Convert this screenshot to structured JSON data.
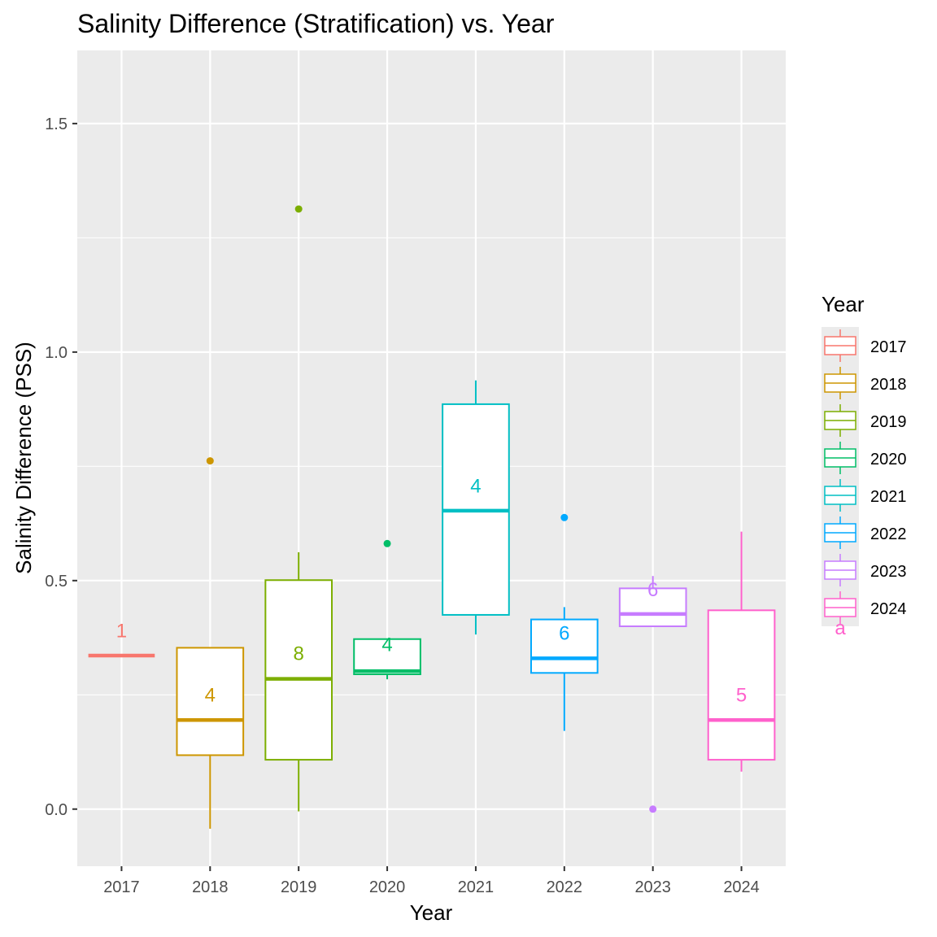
{
  "chart_data": {
    "type": "boxplot",
    "title": "Salinity Difference (Stratification) vs. Year",
    "xlabel": "Year",
    "ylabel": "Salinity Difference (PSS)",
    "ylim": [
      -0.125,
      1.66
    ],
    "yticks": [
      "0.0",
      "0.5",
      "1.0",
      "1.5"
    ],
    "ytick_values": [
      0.0,
      0.5,
      1.0,
      1.5
    ],
    "grid": true,
    "legend": {
      "title": "Year",
      "position": "right"
    },
    "categories": [
      "2017",
      "2018",
      "2019",
      "2020",
      "2021",
      "2022",
      "2023",
      "2024"
    ],
    "series": [
      {
        "name": "2017",
        "color": "#F8766D",
        "min": 0.336,
        "q1": 0.336,
        "median": 0.336,
        "q3": 0.336,
        "max": 0.336,
        "outliers": [],
        "n": "1",
        "label_y": 0.39
      },
      {
        "name": "2018",
        "color": "#CD9600",
        "min": -0.043,
        "q1": 0.118,
        "median": 0.195,
        "q3": 0.353,
        "max": 0.353,
        "outliers": [
          0.762
        ],
        "n": "4",
        "label_y": 0.25
      },
      {
        "name": "2019",
        "color": "#7CAE00",
        "min": -0.005,
        "q1": 0.108,
        "median": 0.285,
        "q3": 0.501,
        "max": 0.562,
        "outliers": [
          1.313
        ],
        "n": "8",
        "label_y": 0.34
      },
      {
        "name": "2020",
        "color": "#00BE67",
        "min": 0.284,
        "q1": 0.295,
        "median": 0.302,
        "q3": 0.372,
        "max": 0.372,
        "outliers": [
          0.581
        ],
        "n": "4",
        "label_y": 0.36
      },
      {
        "name": "2021",
        "color": "#00BFC4",
        "min": 0.382,
        "q1": 0.425,
        "median": 0.653,
        "q3": 0.886,
        "max": 0.938,
        "outliers": [],
        "n": "4",
        "label_y": 0.707
      },
      {
        "name": "2022",
        "color": "#00A9FF",
        "min": 0.171,
        "q1": 0.298,
        "median": 0.33,
        "q3": 0.415,
        "max": 0.442,
        "outliers": [
          0.638
        ],
        "n": "6",
        "label_y": 0.385
      },
      {
        "name": "2023",
        "color": "#C77CFF",
        "min": 0.4,
        "q1": 0.4,
        "median": 0.427,
        "q3": 0.483,
        "max": 0.51,
        "outliers": [
          0.0
        ],
        "n": "6",
        "label_y": 0.48
      },
      {
        "name": "2024",
        "color": "#FF61CC",
        "min": 0.082,
        "q1": 0.108,
        "median": 0.195,
        "q3": 0.435,
        "max": 0.607,
        "outliers": [],
        "n": "5",
        "label_y": 0.25
      }
    ],
    "legend_key_text": "a"
  }
}
